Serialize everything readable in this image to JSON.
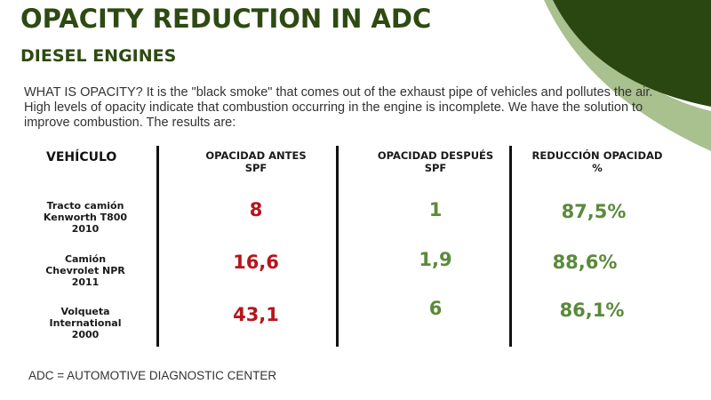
{
  "header": {
    "title": "OPACITY REDUCTION IN ADC",
    "subtitle": "DIESEL ENGINES"
  },
  "intro": "WHAT IS OPACITY? It is the \"black smoke\" that comes out of the exhaust pipe of vehicles and pollutes the air. High levels of opacity indicate that combustion occurring in the engine is incomplete.  We have the solution to improve combustion. The results are:",
  "table": {
    "headers": {
      "vehicle": "VEHÍCULO",
      "before": [
        "OPACIDAD ANTES",
        "SPF"
      ],
      "after": [
        "OPACIDAD DESPUÉS",
        "SPF"
      ],
      "reduction": [
        "REDUCCIÓN OPACIDAD",
        "%"
      ]
    },
    "rows": [
      {
        "vehicle": [
          "Tracto camión",
          "Kenworth T800",
          "2010"
        ],
        "before": "8",
        "after": "1",
        "reduction": "87,5%"
      },
      {
        "vehicle": [
          "Camión",
          "Chevrolet NPR",
          "2011"
        ],
        "before": "16,6",
        "after": "1,9",
        "reduction": "88,6%"
      },
      {
        "vehicle": [
          "Volqueta",
          "International",
          "2000"
        ],
        "before": "43,1",
        "after": "6",
        "reduction": "86,1%"
      }
    ]
  },
  "footnote": "ADC = AUTOMOTIVE DIAGNOSTIC CENTER",
  "colors": {
    "dark_green": "#2d4a12",
    "light_green": "#a9c08f",
    "value_red": "#b8141a",
    "value_green": "#5a8a3a"
  }
}
